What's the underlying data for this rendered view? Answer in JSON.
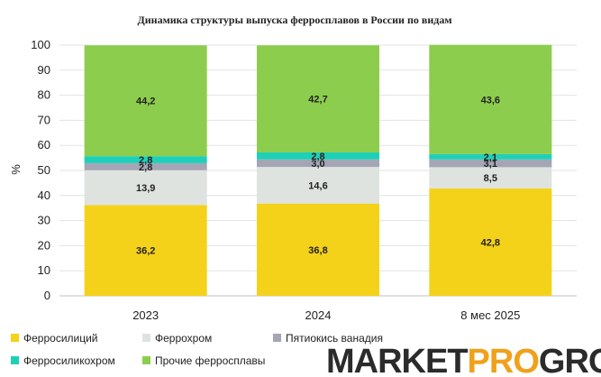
{
  "chart_data": {
    "type": "bar",
    "stacked": true,
    "title": "Динамика структуры выпуска ферросплавов в России по видам",
    "ylabel": "%",
    "xlabel": "",
    "ylim": [
      0,
      100
    ],
    "yticks": [
      0,
      10,
      20,
      30,
      40,
      50,
      60,
      70,
      80,
      90,
      100
    ],
    "categories": [
      "2023",
      "2024",
      "8 мес 2025"
    ],
    "series": [
      {
        "name": "Ферросилиций",
        "color": "#f5d21a",
        "values": [
          36.2,
          36.8,
          42.8
        ],
        "labels": [
          "36,2",
          "36,8",
          "42,8"
        ]
      },
      {
        "name": "Феррохром",
        "color": "#dfe3df",
        "values": [
          13.9,
          14.6,
          8.5
        ],
        "labels": [
          "13,9",
          "14,6",
          "8,5"
        ]
      },
      {
        "name": "Пятиокись ванадия",
        "color": "#a4a6b6",
        "values": [
          2.8,
          3.0,
          3.1
        ],
        "labels": [
          "2,8",
          "3,0",
          "3,1"
        ]
      },
      {
        "name": "Ферросиликохром",
        "color": "#1fd0b8",
        "values": [
          2.8,
          2.8,
          2.1
        ],
        "labels": [
          "2,8",
          "2,8",
          "2,1"
        ]
      },
      {
        "name": "Прочие ферросплавы",
        "color": "#8dcd4d",
        "values": [
          44.2,
          42.7,
          43.6
        ],
        "labels": [
          "44,2",
          "42,7",
          "43,6"
        ]
      }
    ],
    "legend_position": "bottom",
    "grid": true
  },
  "logo": {
    "part1": "MARKET",
    "part2": "PRO",
    "part3": "GROUP"
  }
}
